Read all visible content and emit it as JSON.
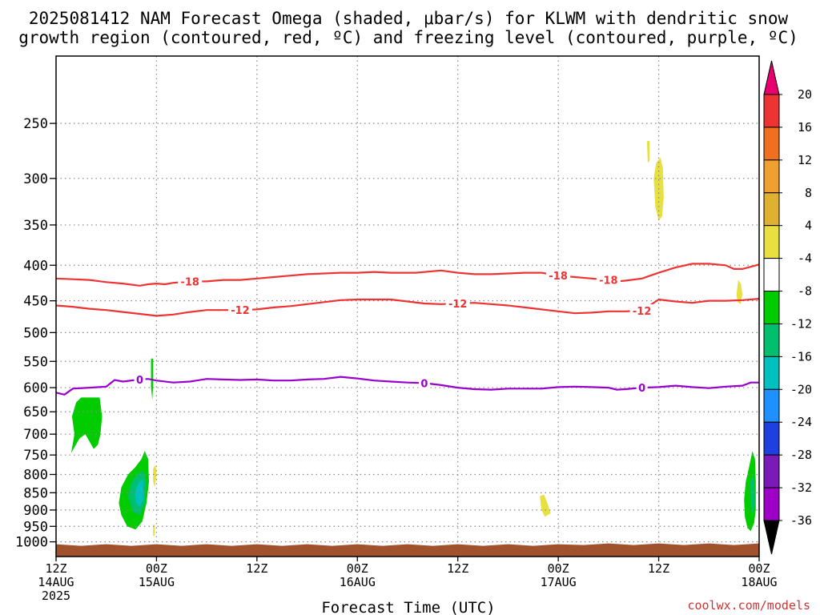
{
  "title_line1": "2025081412 NAM Forecast Omega (shaded, μbar/s) for KLWM with dendritic snow",
  "title_line2": "growth region (contoured, red, ºC) and freezing level (contoured, purple, ºC)",
  "x_axis_title": "Forecast Time (UTC)",
  "credit": "coolwx.com/models",
  "colors": {
    "red_contour": "#ee3333",
    "purple_contour": "#9900cc",
    "ground": "#a0522d",
    "grid": "#888888"
  },
  "chart_data": {
    "type": "heatmap",
    "title": "2025081412 NAM Forecast Omega (shaded, μbar/s) for KLWM with dendritic snow growth region (contoured, red, ºC) and freezing level (contoured, purple, ºC)",
    "xlabel": "Forecast Time (UTC)",
    "ylabel": "",
    "x_unit": "hours from 2025-08-14 12Z",
    "xlim": [
      0,
      84
    ],
    "ylim": [
      1050,
      200
    ],
    "y_scale": "log",
    "grid": true,
    "x_ticks": [
      {
        "x": 0,
        "label1": "12Z",
        "label2": "14AUG",
        "label3": "2025"
      },
      {
        "x": 12,
        "label1": "00Z",
        "label2": "15AUG",
        "label3": ""
      },
      {
        "x": 24,
        "label1": "12Z",
        "label2": "",
        "label3": ""
      },
      {
        "x": 36,
        "label1": "00Z",
        "label2": "16AUG",
        "label3": ""
      },
      {
        "x": 48,
        "label1": "12Z",
        "label2": "",
        "label3": ""
      },
      {
        "x": 60,
        "label1": "00Z",
        "label2": "17AUG",
        "label3": ""
      },
      {
        "x": 72,
        "label1": "12Z",
        "label2": "",
        "label3": ""
      },
      {
        "x": 84,
        "label1": "00Z",
        "label2": "18AUG",
        "label3": ""
      }
    ],
    "y_ticks": [
      250,
      300,
      350,
      400,
      450,
      500,
      550,
      600,
      650,
      700,
      750,
      800,
      850,
      900,
      950,
      1000
    ],
    "colorbar": {
      "unit": "μbar/s",
      "boundaries": [
        -36,
        -32,
        -28,
        -24,
        -20,
        -16,
        -12,
        -8,
        -4,
        4,
        8,
        12,
        16,
        20
      ],
      "labels": [
        "20",
        "16",
        "12",
        "8",
        "4",
        "-4",
        "-8",
        "-12",
        "-16",
        "-20",
        "-24",
        "-28",
        "-32",
        "-36"
      ],
      "colors_top_to_bottom": [
        "#e8006e",
        "#ee3333",
        "#f07020",
        "#f0a030",
        "#e0b030",
        "#e8e040",
        "#ffffff",
        "#00cc00",
        "#00c070",
        "#00c0c0",
        "#1e90ff",
        "#1e40e0",
        "#7a1ab8",
        "#9e00c8",
        "#a0a0a0",
        "#000000"
      ]
    },
    "contours": [
      {
        "name": "-18",
        "color": "red",
        "label": "-18",
        "points": [
          [
            0,
            418
          ],
          [
            2,
            419
          ],
          [
            4,
            420
          ],
          [
            6,
            423
          ],
          [
            8,
            425
          ],
          [
            10,
            428
          ],
          [
            11,
            426
          ],
          [
            12,
            425
          ],
          [
            13,
            426
          ],
          [
            14,
            424
          ],
          [
            16,
            422
          ],
          [
            18,
            422
          ],
          [
            20,
            420
          ],
          [
            22,
            420
          ],
          [
            24,
            418
          ],
          [
            26,
            416
          ],
          [
            28,
            414
          ],
          [
            30,
            412
          ],
          [
            32,
            411
          ],
          [
            34,
            410
          ],
          [
            36,
            410
          ],
          [
            38,
            409
          ],
          [
            40,
            410
          ],
          [
            42,
            410
          ],
          [
            43,
            410
          ],
          [
            45,
            408
          ],
          [
            46,
            407
          ],
          [
            48,
            410
          ],
          [
            50,
            412
          ],
          [
            52,
            412
          ],
          [
            54,
            411
          ],
          [
            56,
            410
          ],
          [
            58,
            410
          ],
          [
            60,
            414
          ],
          [
            62,
            416
          ],
          [
            64,
            418
          ],
          [
            66,
            420
          ],
          [
            67,
            422
          ],
          [
            68,
            421
          ],
          [
            70,
            418
          ],
          [
            72,
            410
          ],
          [
            74,
            403
          ],
          [
            76,
            398
          ],
          [
            78,
            398
          ],
          [
            80,
            400
          ],
          [
            81,
            405
          ],
          [
            82,
            405
          ],
          [
            84,
            399
          ]
        ]
      },
      {
        "name": "-12",
        "color": "red",
        "label": "-12",
        "points": [
          [
            0,
            457
          ],
          [
            2,
            459
          ],
          [
            4,
            462
          ],
          [
            6,
            464
          ],
          [
            8,
            467
          ],
          [
            10,
            470
          ],
          [
            12,
            473
          ],
          [
            14,
            471
          ],
          [
            16,
            467
          ],
          [
            18,
            464
          ],
          [
            20,
            464
          ],
          [
            22,
            464
          ],
          [
            24,
            463
          ],
          [
            26,
            460
          ],
          [
            28,
            458
          ],
          [
            30,
            455
          ],
          [
            32,
            452
          ],
          [
            34,
            449
          ],
          [
            36,
            448
          ],
          [
            38,
            448
          ],
          [
            40,
            448
          ],
          [
            42,
            451
          ],
          [
            44,
            454
          ],
          [
            46,
            455
          ],
          [
            48,
            454
          ],
          [
            50,
            453
          ],
          [
            52,
            455
          ],
          [
            54,
            457
          ],
          [
            56,
            460
          ],
          [
            58,
            463
          ],
          [
            60,
            466
          ],
          [
            62,
            469
          ],
          [
            64,
            468
          ],
          [
            66,
            466
          ],
          [
            68,
            466
          ],
          [
            70,
            465
          ],
          [
            72,
            448
          ],
          [
            74,
            451
          ],
          [
            76,
            453
          ],
          [
            78,
            450
          ],
          [
            80,
            450
          ],
          [
            82,
            449
          ],
          [
            84,
            447
          ]
        ]
      },
      {
        "name": "0",
        "color": "purple",
        "label": "0",
        "points": [
          [
            0,
            610
          ],
          [
            1,
            614
          ],
          [
            2,
            602
          ],
          [
            4,
            600
          ],
          [
            6,
            598
          ],
          [
            7,
            585
          ],
          [
            8,
            588
          ],
          [
            10,
            584
          ],
          [
            11,
            583
          ],
          [
            12,
            586
          ],
          [
            14,
            590
          ],
          [
            16,
            588
          ],
          [
            18,
            583
          ],
          [
            20,
            584
          ],
          [
            22,
            585
          ],
          [
            24,
            584
          ],
          [
            26,
            586
          ],
          [
            28,
            586
          ],
          [
            30,
            584
          ],
          [
            32,
            583
          ],
          [
            34,
            579
          ],
          [
            36,
            582
          ],
          [
            38,
            586
          ],
          [
            40,
            588
          ],
          [
            42,
            590
          ],
          [
            44,
            591
          ],
          [
            46,
            595
          ],
          [
            48,
            600
          ],
          [
            50,
            603
          ],
          [
            52,
            604
          ],
          [
            54,
            602
          ],
          [
            56,
            602
          ],
          [
            58,
            602
          ],
          [
            60,
            599
          ],
          [
            62,
            598
          ],
          [
            64,
            599
          ],
          [
            66,
            600
          ],
          [
            67,
            604
          ],
          [
            68,
            603
          ],
          [
            70,
            600
          ],
          [
            72,
            599
          ],
          [
            74,
            596
          ],
          [
            76,
            599
          ],
          [
            78,
            601
          ],
          [
            80,
            598
          ],
          [
            82,
            596
          ],
          [
            83,
            590
          ],
          [
            84,
            590
          ]
        ]
      }
    ],
    "shaded_regions": [
      {
        "name": "green-700",
        "band": "-8 to -4",
        "points": [
          [
            1.8,
            745
          ],
          [
            2.2,
            700
          ],
          [
            1.9,
            660
          ],
          [
            2.4,
            630
          ],
          [
            3.0,
            620
          ],
          [
            5.2,
            620
          ],
          [
            5.5,
            660
          ],
          [
            5.3,
            700
          ],
          [
            5.0,
            725
          ],
          [
            4.5,
            735
          ],
          [
            3.5,
            700
          ],
          [
            2.8,
            710
          ]
        ]
      },
      {
        "name": "green-850",
        "band": "-8 to -4",
        "points": [
          [
            7.5,
            880
          ],
          [
            7.8,
            835
          ],
          [
            8.6,
            800
          ],
          [
            9.5,
            780
          ],
          [
            10.2,
            760
          ],
          [
            10.6,
            740
          ],
          [
            11.0,
            760
          ],
          [
            11.1,
            820
          ],
          [
            10.8,
            880
          ],
          [
            10.3,
            935
          ],
          [
            9.5,
            960
          ],
          [
            8.5,
            950
          ],
          [
            7.8,
            915
          ]
        ]
      },
      {
        "name": "teal-850",
        "band": "-12 to -8",
        "points": [
          [
            8.6,
            860
          ],
          [
            9.0,
            820
          ],
          [
            9.7,
            800
          ],
          [
            10.4,
            790
          ],
          [
            10.8,
            820
          ],
          [
            10.6,
            880
          ],
          [
            10.0,
            915
          ],
          [
            9.2,
            905
          ]
        ]
      },
      {
        "name": "cyan-850",
        "band": "-16 to -12",
        "points": [
          [
            9.4,
            850
          ],
          [
            9.9,
            820
          ],
          [
            10.4,
            815
          ],
          [
            10.4,
            870
          ],
          [
            10.0,
            890
          ],
          [
            9.6,
            880
          ]
        ]
      },
      {
        "name": "green-580",
        "band": "-8 to -4",
        "points": [
          [
            11.35,
            545
          ],
          [
            11.6,
            545
          ],
          [
            11.6,
            595
          ],
          [
            11.5,
            625
          ],
          [
            11.35,
            600
          ]
        ]
      },
      {
        "name": "green-850-end",
        "band": "-8 to -4",
        "points": [
          [
            82.2,
            870
          ],
          [
            82.4,
            820
          ],
          [
            82.8,
            780
          ],
          [
            83.2,
            740
          ],
          [
            83.5,
            760
          ],
          [
            83.6,
            820
          ],
          [
            83.6,
            900
          ],
          [
            83.4,
            940
          ],
          [
            83.0,
            965
          ],
          [
            82.6,
            955
          ],
          [
            82.3,
            920
          ]
        ]
      },
      {
        "name": "teal-850-end",
        "band": "-12 to -8",
        "points": [
          [
            82.9,
            820
          ],
          [
            83.4,
            800
          ],
          [
            83.5,
            880
          ],
          [
            83.2,
            920
          ],
          [
            83.0,
            880
          ]
        ]
      },
      {
        "name": "yellow-300",
        "band": "4 to 8",
        "points": [
          [
            71.4,
            300
          ],
          [
            71.7,
            285
          ],
          [
            72.2,
            280
          ],
          [
            72.5,
            290
          ],
          [
            72.6,
            320
          ],
          [
            72.4,
            340
          ],
          [
            72.0,
            345
          ],
          [
            71.6,
            330
          ]
        ]
      },
      {
        "name": "yellow-265",
        "band": "4 to 8",
        "points": [
          [
            70.6,
            265
          ],
          [
            70.9,
            265
          ],
          [
            70.9,
            283
          ],
          [
            70.7,
            285
          ]
        ]
      },
      {
        "name": "yellow-440",
        "band": "4 to 8",
        "points": [
          [
            81.3,
            440
          ],
          [
            81.5,
            420
          ],
          [
            81.8,
            425
          ],
          [
            82.0,
            440
          ],
          [
            81.8,
            455
          ],
          [
            81.4,
            452
          ]
        ]
      },
      {
        "name": "yellow-880",
        "band": "4 to 8",
        "points": [
          [
            57.8,
            860
          ],
          [
            58.3,
            855
          ],
          [
            58.7,
            880
          ],
          [
            59.1,
            910
          ],
          [
            58.4,
            920
          ],
          [
            58.0,
            900
          ]
        ]
      },
      {
        "name": "yellow-800",
        "band": "4 to 8",
        "points": [
          [
            11.6,
            785
          ],
          [
            11.9,
            775
          ],
          [
            12.0,
            800
          ],
          [
            11.8,
            835
          ],
          [
            11.6,
            820
          ]
        ]
      },
      {
        "name": "yellow-960",
        "band": "4 to 8",
        "points": [
          [
            11.6,
            945
          ],
          [
            11.8,
            945
          ],
          [
            11.8,
            980
          ],
          [
            11.6,
            980
          ]
        ]
      }
    ]
  }
}
